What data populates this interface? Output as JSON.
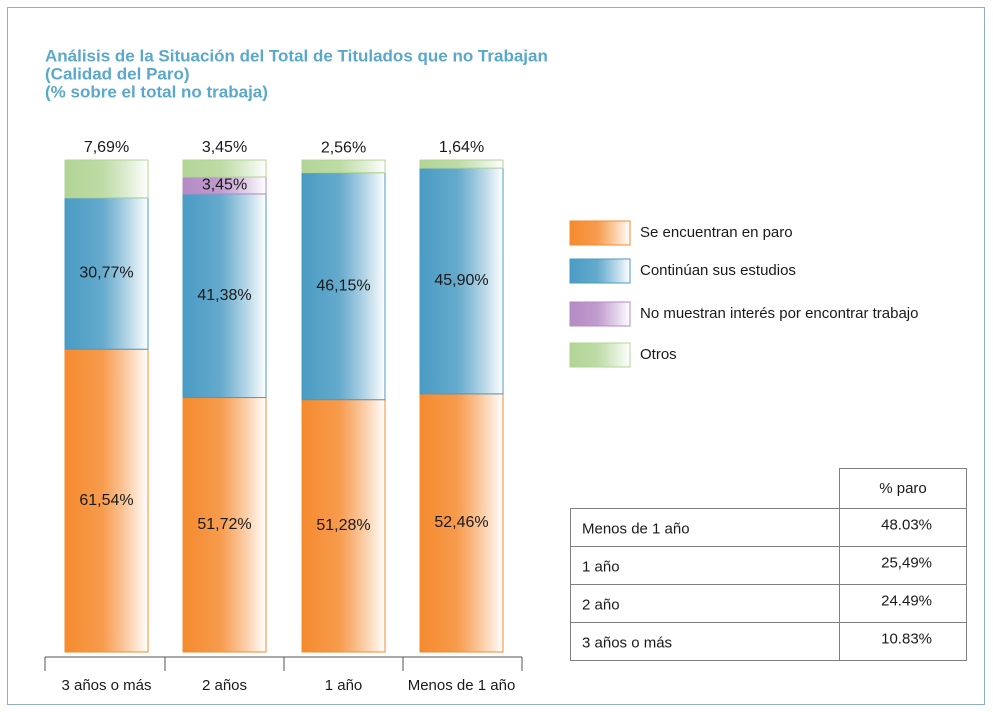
{
  "chart_data": {
    "type": "stacked_bar",
    "title": [
      "Análisis de la Situación del Total de Titulados que no Trabajan",
      "(Calidad del Paro)",
      "(% sobre el total no trabaja)"
    ],
    "categories": [
      "3 años o más",
      "2 años",
      "1 año",
      "Menos de 1 año"
    ],
    "series": [
      {
        "name": "Se encuentran en paro",
        "color": "#f58a2e",
        "values": [
          61.54,
          51.72,
          51.28,
          52.46
        ],
        "value_labels": [
          "61,54%",
          "51,72%",
          "51,28%",
          "52,46%"
        ]
      },
      {
        "name": "Continúan sus estudios",
        "color": "#4a9bc4",
        "values": [
          30.77,
          41.38,
          46.15,
          45.9
        ],
        "value_labels": [
          "30,77%",
          "41,38%",
          "46,15%",
          "45,90%"
        ]
      },
      {
        "name": "No muestran interés por encontrar trabajo",
        "color": "#b58ac6",
        "values": [
          null,
          3.45,
          null,
          null
        ],
        "value_labels": [
          null,
          "3,45%",
          null,
          null
        ]
      },
      {
        "name": "Otros",
        "color": "#b2d596",
        "values": [
          7.69,
          3.45,
          2.56,
          1.64
        ],
        "value_labels": [
          "7,69%",
          "3,45%",
          "2,56%",
          "1,64%"
        ]
      }
    ]
  },
  "table": {
    "header": "% paro",
    "rows": [
      [
        "Menos de 1 año",
        "48.03%"
      ],
      [
        "1 año",
        "25,49%"
      ],
      [
        "2 año",
        "24.49%"
      ],
      [
        "3 años o más",
        "10.83%"
      ]
    ]
  }
}
